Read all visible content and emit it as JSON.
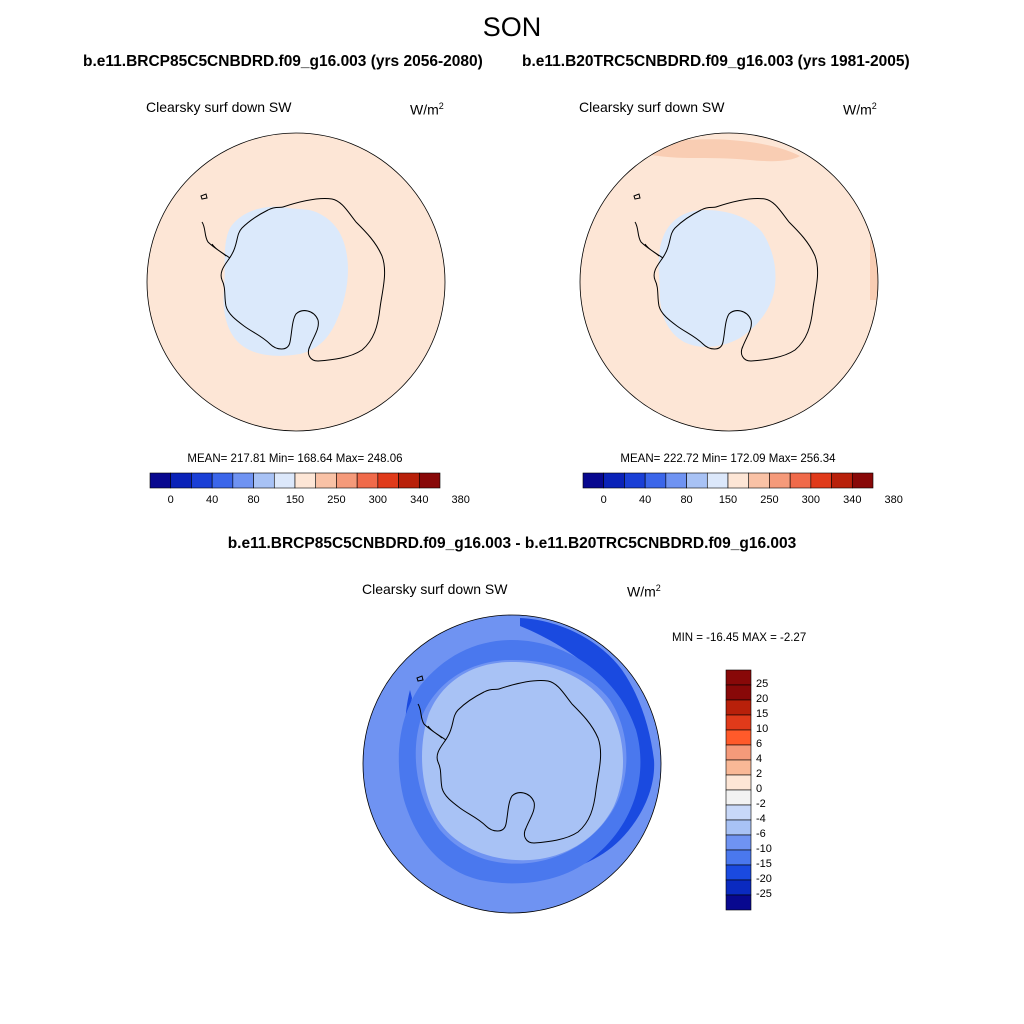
{
  "figure": {
    "season": "SON",
    "diff_title": "b.e11.BRCP85C5CNBDRD.f09_g16.003 - b.e11.B20TRC5CNBDRD.f09_g16.003"
  },
  "panels": [
    {
      "title": "b.e11.BRCP85C5CNBDRD.f09_g16.003 (yrs 2056-2080)",
      "variable": "Clearsky surf down SW",
      "units": "W/m",
      "units_exp": "2",
      "stats_text": "MEAN= 217.81  Min= 168.64  Max= 248.06",
      "mean": 217.81,
      "min": 168.64,
      "max": 248.06
    },
    {
      "title": "b.e11.B20TRC5CNBDRD.f09_g16.003 (yrs 1981-2005)",
      "variable": "Clearsky surf down SW",
      "units": "W/m",
      "units_exp": "2",
      "stats_text": "MEAN= 222.72  Min= 172.09  Max= 256.34",
      "mean": 222.72,
      "min": 172.09,
      "max": 256.34
    },
    {
      "variable": "Clearsky surf down SW",
      "units": "W/m",
      "units_exp": "2",
      "stats_text": "MIN = -16.45 MAX =  -2.27",
      "min": -16.45,
      "max": -2.27
    }
  ],
  "colorbar_abs": {
    "labels": [
      "0",
      "40",
      "80",
      "150",
      "250",
      "300",
      "340",
      "380"
    ],
    "colors": [
      "#08088f",
      "#0a22b8",
      "#1a3fd6",
      "#3b66ea",
      "#6f93f2",
      "#a8c2f5",
      "#dce8fb",
      "#fde6d6",
      "#f9c2a6",
      "#f59a7a",
      "#f06a4a",
      "#e03a1a",
      "#b8200a",
      "#880808"
    ]
  },
  "colorbar_diff": {
    "labels": [
      "25",
      "20",
      "15",
      "10",
      "6",
      "4",
      "2",
      "0",
      "-2",
      "-4",
      "-6",
      "-10",
      "-15",
      "-20",
      "-25"
    ],
    "colors": [
      "#880808",
      "#b8200a",
      "#e03a1a",
      "#ff5a2a",
      "#f59a7a",
      "#f9b896",
      "#fde6d6",
      "#f2f2f2",
      "#c8d8f8",
      "#a8c2f5",
      "#6f93f2",
      "#4a78ee",
      "#1a4ae0",
      "#0a2ac0",
      "#08088f"
    ]
  },
  "map_colors": {
    "ocean_abs": "#fde6d6",
    "ocean_abs_high": "#f9cdb3",
    "land_abs": "#dbe9fb",
    "diff_outer": "#6f93f2",
    "diff_ring": "#4a78ee",
    "diff_strong": "#1a4ae0",
    "diff_inner": "#a8c2f5",
    "diff_land": "#c8d8f8"
  }
}
